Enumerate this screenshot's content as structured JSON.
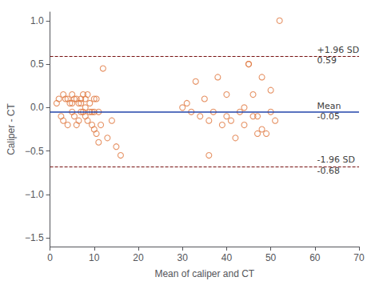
{
  "chart_data": {
    "type": "scatter",
    "xlabel": "Mean of caliper and CT",
    "ylabel": "Caliper - CT",
    "x": [
      1.5,
      2,
      2.5,
      3,
      3,
      3.5,
      4,
      4,
      4.5,
      5,
      5,
      5,
      5.5,
      5.5,
      6,
      6,
      6.5,
      6.5,
      7,
      7,
      7,
      7.5,
      7.5,
      8,
      8,
      8,
      8.5,
      8.5,
      9,
      9,
      9.5,
      9.5,
      10,
      10,
      10,
      10.5,
      10.5,
      11,
      11,
      11.5,
      12,
      13,
      14,
      15,
      16,
      30,
      31,
      32,
      33,
      34,
      35,
      36,
      36,
      37,
      38,
      39,
      40,
      40,
      41,
      42,
      43,
      44,
      44,
      45,
      45,
      46,
      46,
      47,
      47,
      48,
      48,
      49,
      50,
      50,
      51,
      52
    ],
    "values": [
      0.05,
      0.1,
      -0.1,
      0.15,
      -0.15,
      0.1,
      0.1,
      -0.2,
      0.05,
      0.15,
      0.05,
      -0.05,
      0.1,
      -0.1,
      0.1,
      -0.2,
      0.05,
      -0.15,
      0.1,
      0.05,
      -0.05,
      0.15,
      -0.05,
      0.1,
      0.0,
      -0.1,
      0.15,
      -0.15,
      0.05,
      -0.05,
      -0.05,
      -0.2,
      0.1,
      -0.05,
      -0.25,
      0.1,
      -0.3,
      -0.05,
      -0.4,
      -0.2,
      0.45,
      -0.35,
      -0.15,
      -0.45,
      -0.55,
      0.0,
      0.05,
      -0.05,
      0.3,
      -0.1,
      0.1,
      -0.15,
      -0.55,
      -0.05,
      0.35,
      -0.2,
      0.15,
      -0.1,
      -0.15,
      -0.35,
      -0.05,
      0.0,
      -0.2,
      0.5,
      0.5,
      0.15,
      -0.1,
      -0.1,
      -0.3,
      -0.25,
      0.35,
      -0.3,
      -0.05,
      0.2,
      -0.15,
      1.0
    ],
    "color": "#E07840",
    "marker": "open_circle",
    "reference_lines": [
      {
        "value": -0.05,
        "color": "#2244AA",
        "line_style": "solid"
      },
      {
        "value": 0.59,
        "color": "#771111",
        "line_style": "dashed"
      },
      {
        "value": -0.68,
        "color": "#771111",
        "line_style": "dashed"
      }
    ],
    "annotations": [
      {
        "text": "+1.96 SD",
        "x": 60.5,
        "y": 0.66
      },
      {
        "text": "0.59",
        "x": 60.5,
        "y": 0.54
      },
      {
        "text": "Mean",
        "x": 60.5,
        "y": 0.02
      },
      {
        "text": "-0.05",
        "x": 60.5,
        "y": -0.1
      },
      {
        "text": "-1.96 SD",
        "x": 60.5,
        "y": -0.6
      },
      {
        "text": "-0.68",
        "x": 60.5,
        "y": -0.73
      }
    ],
    "xlim": [
      0,
      70
    ],
    "xticks": [
      0,
      10,
      20,
      30,
      40,
      50,
      60,
      70
    ],
    "ylim": [
      -1.6,
      1.1
    ],
    "yticks": [
      {
        "value": -1.5,
        "label": "−1.5"
      },
      {
        "value": -1.0,
        "label": "−1.0"
      },
      {
        "value": -0.5,
        "label": "−0.5"
      },
      {
        "value": 0.0,
        "label": "0.0"
      },
      0.5,
      {
        "value": 1.0,
        "label": "1.0"
      }
    ],
    "grid": false
  }
}
